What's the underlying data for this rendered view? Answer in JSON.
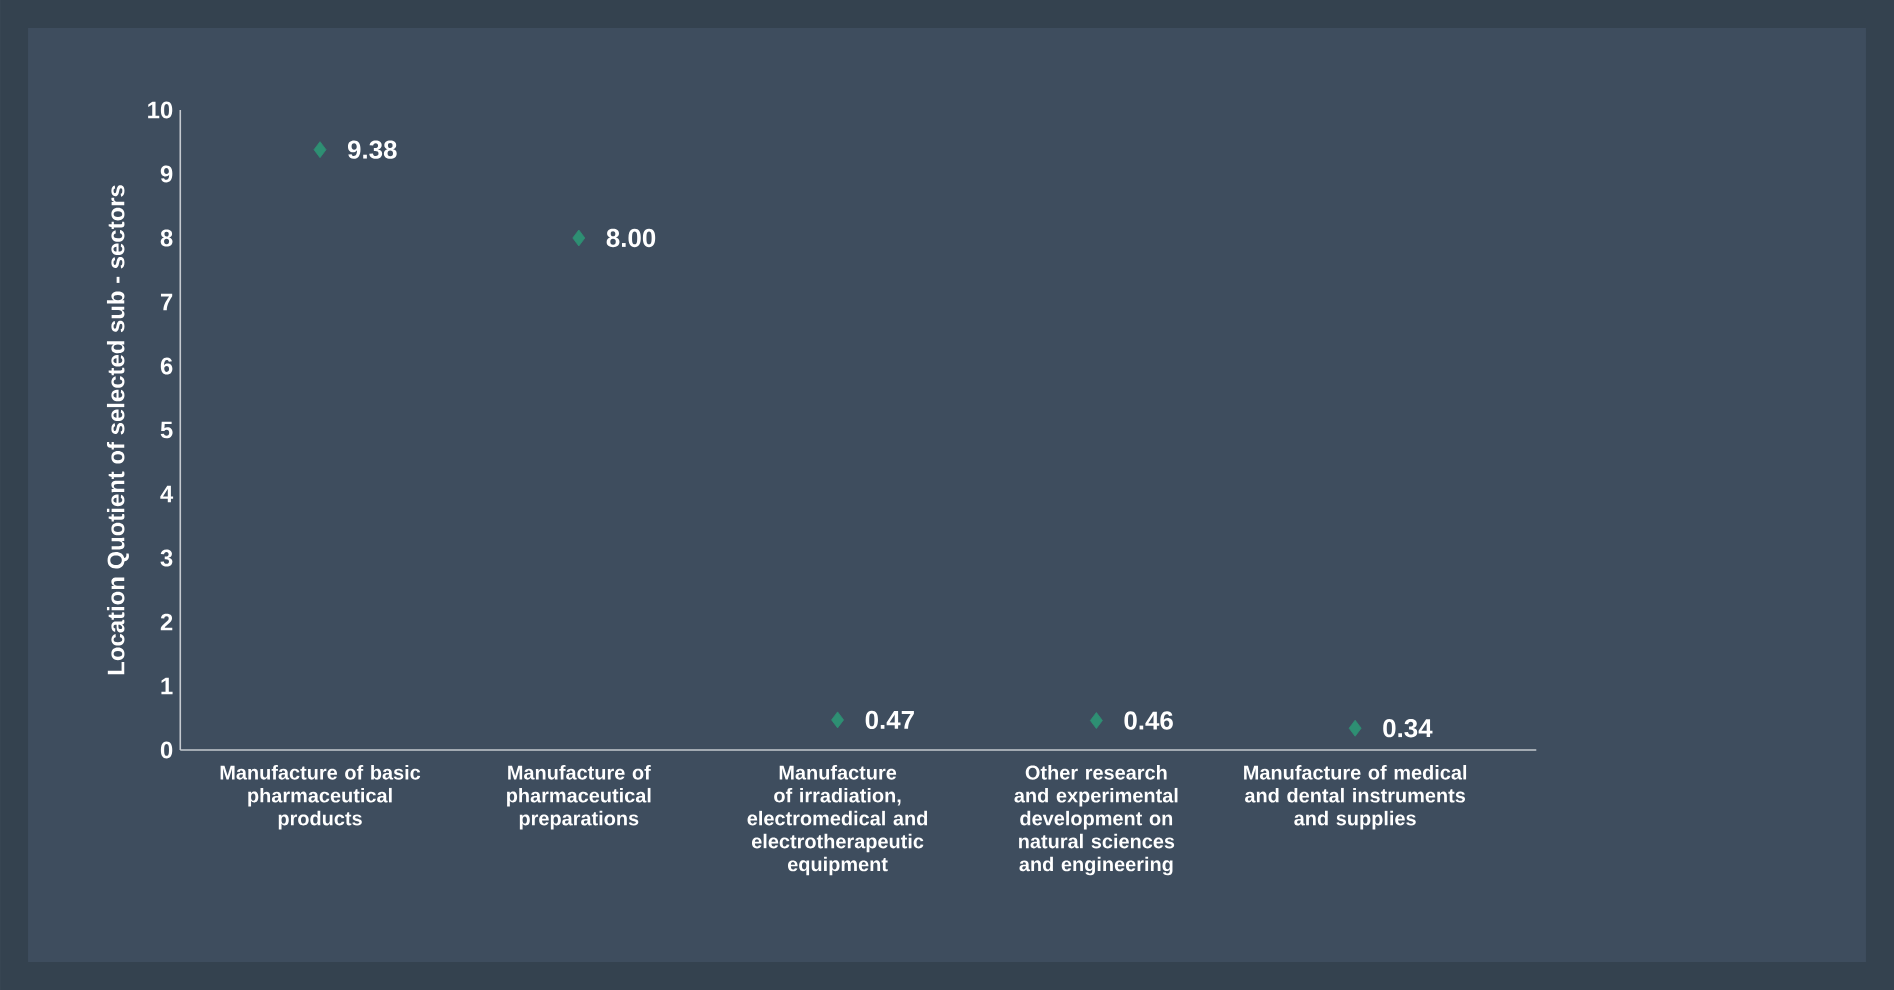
{
  "chart_data": {
    "type": "scatter",
    "ylabel": "Location Quotient of selected sub - sectors",
    "categories": [
      "Manufacture of basic pharmaceutical products",
      "Manufacture of pharmaceutical preparations",
      "Manufacture of irradiation, electromedical and electrotherapeutic equipment",
      "Other research and experimental development on natural sciences and engineering",
      "Manufacture of medical and dental instruments and supplies"
    ],
    "values": [
      9.38,
      8.0,
      0.47,
      0.46,
      0.34
    ],
    "value_labels": [
      "9.38",
      "8.00",
      "0.47",
      "0.46",
      "0.34"
    ],
    "color": "#2e8f73",
    "marker": "diamond",
    "ylim": [
      0,
      10
    ],
    "yticks": [
      0,
      1,
      2,
      3,
      4,
      5,
      6,
      7,
      8,
      9,
      10
    ],
    "grid": false
  }
}
